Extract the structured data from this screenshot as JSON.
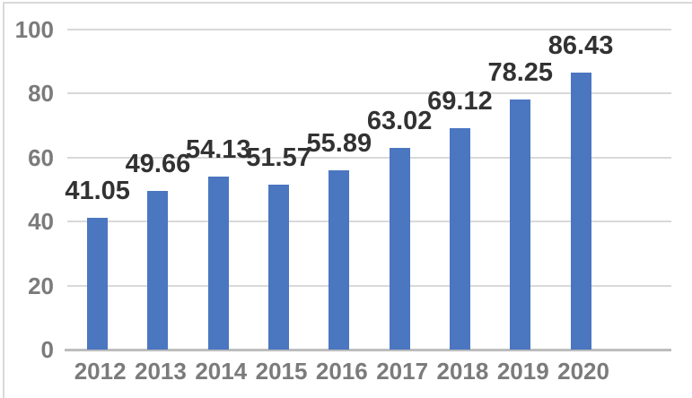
{
  "chart_data": {
    "type": "bar",
    "categories": [
      "2012",
      "2013",
      "2014",
      "2015",
      "2016",
      "2017",
      "2018",
      "2019",
      "2020"
    ],
    "values": [
      41.05,
      49.66,
      54.13,
      51.57,
      55.89,
      63.02,
      69.12,
      78.25,
      86.43
    ],
    "labels": [
      "41.05",
      "49.66",
      "54.13",
      "51.57",
      "55.89",
      "63.02",
      "69.12",
      "78.25",
      "86.43"
    ],
    "yticks": [
      0,
      20,
      40,
      60,
      80,
      100
    ],
    "ylim": [
      0,
      100
    ],
    "grid": true,
    "legend": false,
    "colors": {
      "bar": "#4b76c0",
      "gridline": "#d9d9d9",
      "axis_line": "#bdbdbd",
      "border": "#d9d9d9",
      "data_label": "#323232",
      "tick_label": "#7b7b7b",
      "background": "#ffffff"
    }
  }
}
